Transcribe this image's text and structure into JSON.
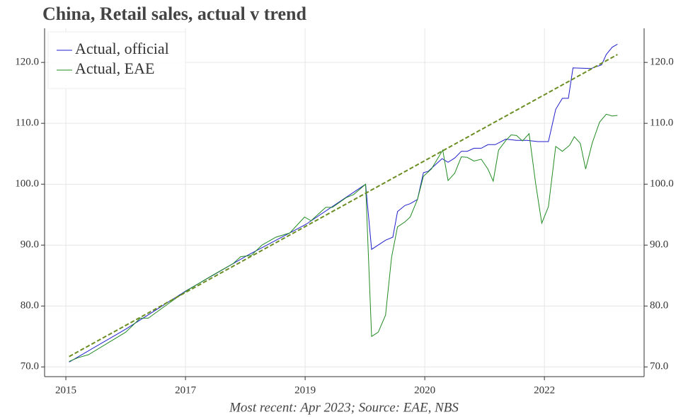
{
  "chart_data": {
    "type": "line",
    "title": "China, Retail sales, actual v trend",
    "caption": "Most recent: Apr 2023; Source: EAE, NBS",
    "xlim": [
      2014.63,
      2023.65
    ],
    "xticks": [
      {
        "value": 2014.95,
        "label": "2015"
      },
      {
        "value": 2016.75,
        "label": "2017"
      },
      {
        "value": 2018.55,
        "label": "2019"
      },
      {
        "value": 2020.35,
        "label": "2020"
      },
      {
        "value": 2022.15,
        "label": "2022"
      }
    ],
    "ylim": [
      68.4,
      125.6
    ],
    "yticks": [
      {
        "value": 70,
        "label": "70.0"
      },
      {
        "value": 80,
        "label": "80.0"
      },
      {
        "value": 90,
        "label": "90.0"
      },
      {
        "value": 100,
        "label": "100.0"
      },
      {
        "value": 110,
        "label": "110.0"
      },
      {
        "value": 120,
        "label": "120.0"
      }
    ],
    "y2lim": [
      68.4,
      125.6
    ],
    "y2ticks": [
      {
        "value": 70,
        "label": "70.0"
      },
      {
        "value": 80,
        "label": "80.0"
      },
      {
        "value": 90,
        "label": "90.0"
      },
      {
        "value": 100,
        "label": "100.0"
      },
      {
        "value": 110,
        "label": "110.0"
      },
      {
        "value": 120,
        "label": "120.0"
      }
    ],
    "grid": true,
    "legend": "upper left",
    "series": [
      {
        "name": "Actual, official",
        "color": "#1f1fcc",
        "x": [
          2015.0,
          2015.85,
          2016.76,
          2017.68,
          2018.56,
          2019.46,
          2019.55,
          2019.76,
          2019.87,
          2019.94,
          2020.05,
          2020.13,
          2020.24,
          2020.33,
          2020.4,
          2020.51,
          2020.61,
          2020.7,
          2020.8,
          2020.9,
          2020.99,
          2021.09,
          2021.2,
          2021.3,
          2021.41,
          2021.57,
          2021.73,
          2021.89,
          2022.05,
          2022.21,
          2022.32,
          2022.42,
          2022.51,
          2022.58,
          2022.85,
          2023.01,
          2023.08,
          2023.17,
          2023.25
        ],
        "values": [
          70.8,
          76.2,
          82.5,
          88.3,
          93.4,
          100.0,
          89.3,
          90.8,
          91.3,
          95.5,
          96.5,
          96.8,
          97.5,
          101.9,
          102.1,
          103.2,
          104.2,
          103.6,
          104.3,
          105.4,
          105.4,
          105.9,
          105.9,
          106.5,
          106.5,
          107.4,
          107.2,
          107.2,
          107.0,
          107.0,
          112.3,
          114.1,
          114.1,
          119.1,
          119.0,
          119.6,
          121.3,
          122.5,
          123.0
        ]
      },
      {
        "name": "Actual, EAE",
        "color": "#228b22",
        "x": [
          2015.0,
          2015.13,
          2015.29,
          2015.85,
          2016.07,
          2016.19,
          2016.57,
          2016.78,
          2017.15,
          2017.47,
          2017.58,
          2017.74,
          2017.9,
          2018.11,
          2018.32,
          2018.54,
          2018.64,
          2018.86,
          2018.96,
          2019.17,
          2019.28,
          2019.46,
          2019.55,
          2019.65,
          2019.76,
          2019.85,
          2019.94,
          2020.05,
          2020.13,
          2020.24,
          2020.33,
          2020.45,
          2020.62,
          2020.7,
          2020.8,
          2020.9,
          2020.99,
          2021.09,
          2021.2,
          2021.3,
          2021.38,
          2021.46,
          2021.57,
          2021.65,
          2021.73,
          2021.82,
          2021.92,
          2022.02,
          2022.11,
          2022.21,
          2022.32,
          2022.42,
          2022.53,
          2022.6,
          2022.69,
          2022.77,
          2022.87,
          2022.98,
          2023.08,
          2023.17,
          2023.25
        ],
        "values": [
          70.9,
          71.5,
          72.0,
          75.7,
          78.0,
          78.0,
          81.0,
          82.6,
          85.0,
          87.0,
          88.1,
          88.3,
          90.0,
          91.3,
          92.0,
          94.6,
          94.0,
          96.2,
          96.2,
          97.8,
          98.3,
          100.0,
          75.0,
          75.7,
          78.5,
          88.0,
          93.0,
          93.8,
          94.6,
          97.5,
          101.3,
          102.5,
          105.6,
          100.6,
          101.8,
          104.5,
          104.4,
          103.8,
          104.1,
          102.5,
          100.5,
          105.6,
          107.2,
          108.1,
          108.0,
          107.1,
          108.3,
          100.0,
          93.6,
          96.3,
          106.2,
          105.4,
          106.4,
          107.8,
          106.7,
          102.5,
          106.8,
          110.2,
          111.5,
          111.2,
          111.3
        ]
      },
      {
        "color": "#6b8e23",
        "dashed": true,
        "x": [
          2015.0,
          2023.25
        ],
        "values": [
          71.7,
          121.3
        ]
      }
    ]
  }
}
